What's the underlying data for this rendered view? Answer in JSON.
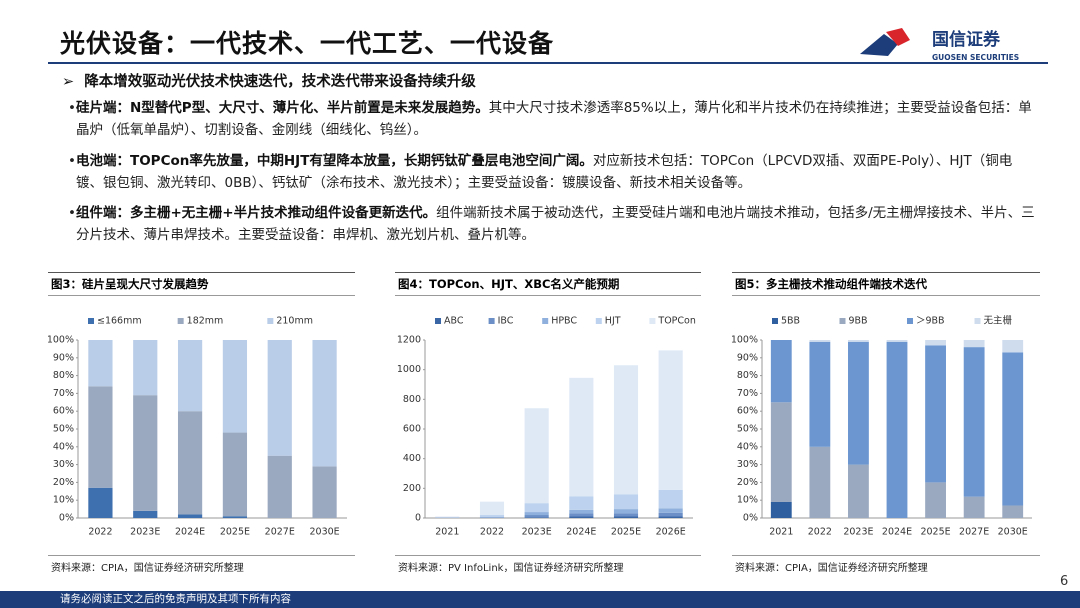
{
  "header": {
    "title": "光伏设备：一代技术、一代工艺、一代设备"
  },
  "logo": {
    "name": "国信证券",
    "english": "GUOSEN SECURITIES"
  },
  "subtitle": "降本增效驱动光伏技术快速迭代，技术迭代带来设备持续升级",
  "bullets": [
    {
      "bold": "硅片端：N型替代P型、大尺寸、薄片化、半片前置是未来发展趋势。",
      "text": "其中大尺寸技术渗透率85%以上，薄片化和半片技术仍在持续推进；主要受益设备包括：单晶炉（低氧单晶炉）、切割设备、金刚线（细线化、钨丝）。"
    },
    {
      "bold": "电池端：TOPCon率先放量，中期HJT有望降本放量，长期钙钛矿叠层电池空间广阔。",
      "text": "对应新技术包括：TOPCon（LPCVD双插、双面PE-Poly）、HJT（铜电镀、银包铜、激光转印、0BB）、钙钛矿（涂布技术、激光技术）；主要受益设备：镀膜设备、新技术相关设备等。"
    },
    {
      "bold": "组件端：多主栅+无主栅+半片技术推动组件设备更新迭代。",
      "text": "组件端新技术属于被动迭代，主要受硅片端和电池片端技术推动，包括多/无主栅焊接技术、半片、三分片技术、薄片串焊技术。主要受益设备：串焊机、激光划片机、叠片机等。"
    }
  ],
  "chart_data": [
    {
      "type": "bar",
      "stacked": true,
      "title": "图3：硅片呈现大尺寸发展趋势",
      "source": "资料来源：CPIA，国信证券经济研究所整理",
      "categories": [
        "2022",
        "2023E",
        "2024E",
        "2025E",
        "2027E",
        "2030E"
      ],
      "series": [
        {
          "name": "≤166mm",
          "color": "#3e6fae",
          "values": [
            17,
            4,
            2,
            1,
            0,
            0
          ]
        },
        {
          "name": "182mm",
          "color": "#9aa9c0",
          "values": [
            57,
            65,
            58,
            47,
            35,
            29
          ]
        },
        {
          "name": "210mm",
          "color": "#b9cde8",
          "values": [
            26,
            31,
            40,
            52,
            65,
            71
          ]
        }
      ],
      "ylim": [
        0,
        100
      ],
      "yticks": [
        {
          "value": 0,
          "label": "0%"
        },
        {
          "value": 10,
          "label": "10%"
        },
        {
          "value": 20,
          "label": "20%"
        },
        {
          "value": 30,
          "label": "30%"
        },
        {
          "value": 40,
          "label": "40%"
        },
        {
          "value": 50,
          "label": "50%"
        },
        {
          "value": 60,
          "label": "60%"
        },
        {
          "value": 70,
          "label": "70%"
        },
        {
          "value": 80,
          "label": "80%"
        },
        {
          "value": 90,
          "label": "90%"
        },
        {
          "value": 100,
          "label": "100%"
        }
      ],
      "legend": "top"
    },
    {
      "type": "bar",
      "stacked": true,
      "title": "图4：TOPCon、HJT、XBC名义产能预期",
      "source": "资料来源：PV InfoLink，国信证券经济研究所整理",
      "categories": [
        "2021",
        "2022",
        "2023E",
        "2024E",
        "2025E",
        "2026E"
      ],
      "series": [
        {
          "name": "ABC",
          "color": "#3a66a6",
          "values": [
            0,
            0,
            5,
            10,
            10,
            10
          ]
        },
        {
          "name": "IBC",
          "color": "#6b8fc6",
          "values": [
            2,
            5,
            15,
            20,
            20,
            25
          ]
        },
        {
          "name": "HPBC",
          "color": "#8fb0dc",
          "values": [
            0,
            0,
            20,
            25,
            30,
            30
          ]
        },
        {
          "name": "HJT",
          "color": "#bcd2ee",
          "values": [
            3,
            15,
            60,
            90,
            100,
            125
          ]
        },
        {
          "name": "TOPCon",
          "color": "#dfe9f6",
          "values": [
            5,
            90,
            640,
            800,
            870,
            940
          ]
        }
      ],
      "ylim": [
        0,
        1200
      ],
      "yticks": [
        0,
        200,
        400,
        600,
        800,
        1000,
        1200
      ],
      "legend": "top"
    },
    {
      "type": "bar",
      "stacked": true,
      "title": "图5：多主栅技术推动组件端技术迭代",
      "source": "资料来源：CPIA，国信证券经济研究所整理",
      "categories": [
        "2021",
        "2022",
        "2023E",
        "2024E",
        "2025E",
        "2027E",
        "2030E"
      ],
      "series": [
        {
          "name": "5BB",
          "color": "#2f5f9e",
          "values": [
            9,
            0,
            0,
            0,
            0,
            0,
            0
          ]
        },
        {
          "name": "9BB",
          "color": "#9aa9c0",
          "values": [
            56,
            40,
            30,
            0,
            20,
            12,
            7
          ]
        },
        {
          "name": "＞9BB",
          "color": "#6b96d0",
          "values": [
            35,
            59,
            69,
            99,
            77,
            84,
            86
          ]
        },
        {
          "name": "无主栅",
          "color": "#cfdcee",
          "values": [
            0,
            1,
            1,
            1,
            3,
            4,
            7
          ]
        }
      ],
      "ylim": [
        0,
        100
      ],
      "yticks": [
        {
          "value": 0,
          "label": "0%"
        },
        {
          "value": 10,
          "label": "10%"
        },
        {
          "value": 20,
          "label": "20%"
        },
        {
          "value": 30,
          "label": "30%"
        },
        {
          "value": 40,
          "label": "40%"
        },
        {
          "value": 50,
          "label": "50%"
        },
        {
          "value": 60,
          "label": "60%"
        },
        {
          "value": 70,
          "label": "70%"
        },
        {
          "value": 80,
          "label": "80%"
        },
        {
          "value": 90,
          "label": "90%"
        },
        {
          "value": 100,
          "label": "100%"
        }
      ],
      "legend": "top"
    }
  ],
  "footer": "请务必阅读正文之后的免责声明及其项下所有内容",
  "page_number": "6"
}
